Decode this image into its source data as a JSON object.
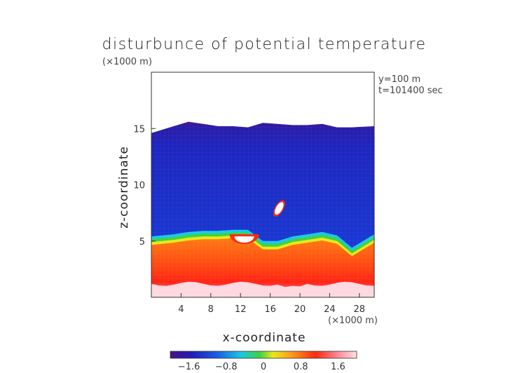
{
  "chart_data": {
    "type": "heatmap",
    "title": "disturbunce of potential temperature",
    "xlabel": "x-coordinate",
    "ylabel": "z-coordinate",
    "x_unit_label": "(×1000 m)",
    "y_unit_label": "(×1000 m)",
    "annotations": [
      "y=100 m",
      "t=101400 sec"
    ],
    "xlim": [
      0,
      30
    ],
    "ylim": [
      0,
      20
    ],
    "x_ticks": [
      4,
      8,
      12,
      16,
      20,
      24,
      28
    ],
    "y_ticks": [
      5,
      10,
      15
    ],
    "colorbar": {
      "min": -2.0,
      "max": 2.0,
      "ticks": [
        -1.6,
        -0.8,
        0,
        0.8,
        1.6
      ],
      "tick_labels": [
        "−1.6",
        "−0.8",
        "0",
        "0.8",
        "1.6"
      ],
      "colors": [
        "#4b0f8c",
        "#1f1fb8",
        "#1a5ce6",
        "#19c8e6",
        "#3ed23e",
        "#e8e81a",
        "#ff9a1a",
        "#ff2a10",
        "#ff8a9a",
        "#ffe0e4"
      ]
    },
    "field": {
      "x": [
        0,
        3,
        5,
        7,
        9,
        11,
        13,
        15,
        17,
        19,
        21,
        23,
        25,
        27,
        30
      ],
      "top_height": [
        14.6,
        15.2,
        15.6,
        15.4,
        15.2,
        15.2,
        15.1,
        15.5,
        15.4,
        15.3,
        15.3,
        15.4,
        15.1,
        15.1,
        15.2
      ],
      "green_band_height": [
        5.4,
        5.6,
        5.8,
        5.9,
        5.9,
        6.0,
        6.0,
        5.0,
        5.0,
        5.4,
        5.6,
        5.8,
        5.5,
        4.4,
        5.6
      ],
      "upper_value": -1.2,
      "lower_surface_value": 1.9,
      "anomalies": [
        {
          "type": "ellipse",
          "x": 17.2,
          "z": 7.9,
          "value": 2.2
        },
        {
          "type": "half-disc",
          "x": 12.5,
          "z": 5.1,
          "value": 2.2
        }
      ]
    }
  }
}
